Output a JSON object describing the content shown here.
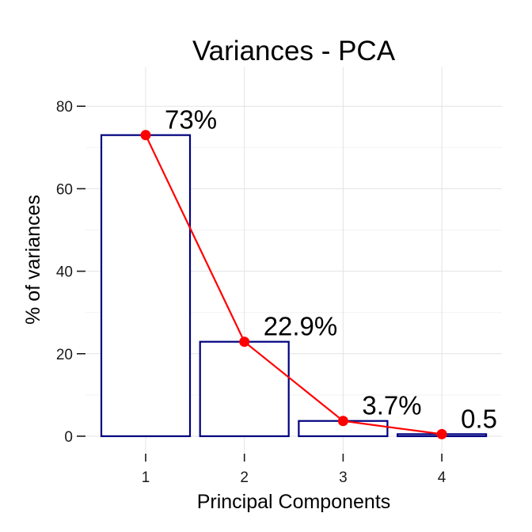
{
  "chart_data": {
    "type": "bar",
    "title": "Variances - PCA",
    "xlabel": "Principal Components",
    "ylabel": "% of variances",
    "categories": [
      "1",
      "2",
      "3",
      "4"
    ],
    "values": [
      73.0,
      22.9,
      3.7,
      0.5
    ],
    "data_labels": [
      "73%",
      "22.9%",
      "3.7%",
      "0.5"
    ],
    "ylim": [
      0,
      90
    ],
    "yticks": [
      0,
      20,
      40,
      60,
      80
    ],
    "bar_fill": "#ffffff",
    "bar_outline": "#000080",
    "line_color": "#ff0000",
    "point_color": "#ff0000",
    "grid": true,
    "legend": "none"
  }
}
